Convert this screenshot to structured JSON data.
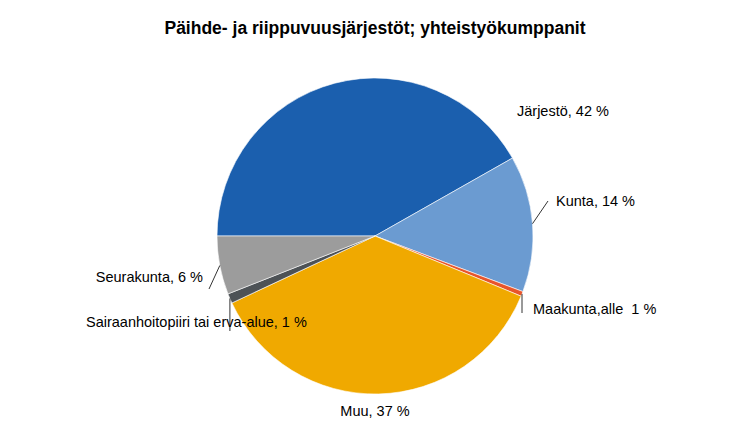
{
  "chart_data": {
    "type": "pie",
    "title": "Päihde- ja riippuvuusjärjestöt; yhteistyökumppanit",
    "categories": [
      "Järjestö",
      "Kunta",
      "Maakunta",
      "Muu",
      "Sairaanhoitopiiri tai erva-alue",
      "Seurakunta"
    ],
    "values": [
      42,
      14,
      0.5,
      37,
      1,
      6
    ],
    "value_labels": [
      ", 42 %",
      ", 14 %",
      ",alle  1 %",
      ", 37 %",
      ", 1 %",
      ", 6 %"
    ],
    "colors": [
      "#1b5fae",
      "#6b9bd1",
      "#e8552a",
      "#f0a900",
      "#4d5256",
      "#9c9c9c"
    ],
    "data_labels": true
  }
}
